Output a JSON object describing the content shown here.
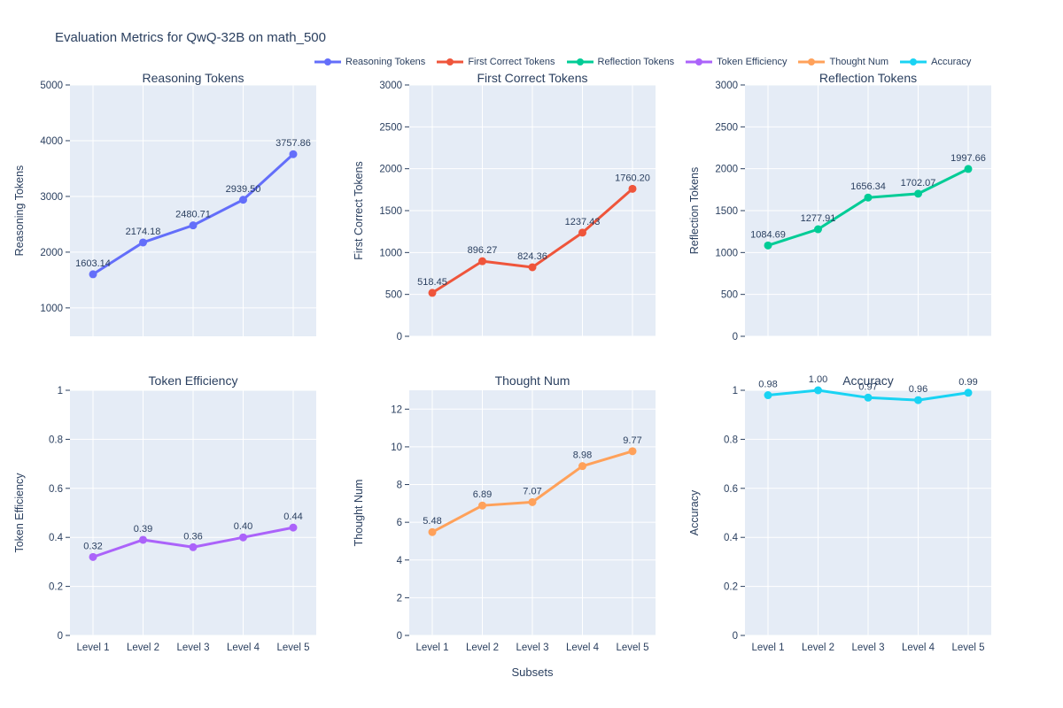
{
  "title": "Evaluation Metrics for QwQ-32B on math_500",
  "xaxis_title": "Subsets",
  "categories": [
    "Level 1",
    "Level 2",
    "Level 3",
    "Level 4",
    "Level 5"
  ],
  "colors": {
    "plot_background": "#e5ecf6",
    "grid": "#ffffff",
    "text": "#2a3f5f"
  },
  "legend": {
    "orientation": "horizontal",
    "items": [
      {
        "label": "Reasoning Tokens",
        "color": "#636efa"
      },
      {
        "label": "First Correct Tokens",
        "color": "#ef553b"
      },
      {
        "label": "Reflection Tokens",
        "color": "#00cc96"
      },
      {
        "label": "Token Efficiency",
        "color": "#ab63fa"
      },
      {
        "label": "Thought Num",
        "color": "#ffa15a"
      },
      {
        "label": "Accuracy",
        "color": "#19d3f3"
      }
    ]
  },
  "chart_data": [
    {
      "type": "line",
      "name": "Reasoning Tokens",
      "title": "Reasoning Tokens",
      "ylabel": "Reasoning Tokens",
      "color": "#636efa",
      "x": [
        "Level 1",
        "Level 2",
        "Level 3",
        "Level 4",
        "Level 5"
      ],
      "y": [
        1603.14,
        2174.18,
        2480.71,
        2939.5,
        3757.86
      ],
      "labels": [
        "1603.14",
        "2174.18",
        "2480.71",
        "2939.50",
        "3757.86"
      ],
      "yticks": [
        1000,
        2000,
        3000,
        4000,
        5000
      ],
      "ytick_labels": [
        "1000",
        "2000",
        "3000",
        "4000",
        "5000"
      ],
      "ylim": [
        490,
        5000
      ],
      "grid": true
    },
    {
      "type": "line",
      "name": "First Correct Tokens",
      "title": "First Correct Tokens",
      "ylabel": "First Correct Tokens",
      "color": "#ef553b",
      "x": [
        "Level 1",
        "Level 2",
        "Level 3",
        "Level 4",
        "Level 5"
      ],
      "y": [
        518.45,
        896.27,
        824.36,
        1237.43,
        1760.2
      ],
      "labels": [
        "518.45",
        "896.27",
        "824.36",
        "1237.43",
        "1760.20"
      ],
      "yticks": [
        0,
        500,
        1000,
        1500,
        2000,
        2500,
        3000
      ],
      "ytick_labels": [
        "0",
        "500",
        "1000",
        "1500",
        "2000",
        "2500",
        "3000"
      ],
      "ylim": [
        0,
        3000
      ],
      "grid": true
    },
    {
      "type": "line",
      "name": "Reflection Tokens",
      "title": "Reflection Tokens",
      "ylabel": "Reflection Tokens",
      "color": "#00cc96",
      "x": [
        "Level 1",
        "Level 2",
        "Level 3",
        "Level 4",
        "Level 5"
      ],
      "y": [
        1084.69,
        1277.91,
        1656.34,
        1702.07,
        1997.66
      ],
      "labels": [
        "1084.69",
        "1277.91",
        "1656.34",
        "1702.07",
        "1997.66"
      ],
      "yticks": [
        0,
        500,
        1000,
        1500,
        2000,
        2500,
        3000
      ],
      "ytick_labels": [
        "0",
        "500",
        "1000",
        "1500",
        "2000",
        "2500",
        "3000"
      ],
      "ylim": [
        0,
        3000
      ],
      "grid": true
    },
    {
      "type": "line",
      "name": "Token Efficiency",
      "title": "Token Efficiency",
      "ylabel": "Token Efficiency",
      "color": "#ab63fa",
      "x": [
        "Level 1",
        "Level 2",
        "Level 3",
        "Level 4",
        "Level 5"
      ],
      "y": [
        0.32,
        0.39,
        0.36,
        0.4,
        0.44
      ],
      "labels": [
        "0.32",
        "0.39",
        "0.36",
        "0.40",
        "0.44"
      ],
      "yticks": [
        0,
        0.2,
        0.4,
        0.6,
        0.8,
        1
      ],
      "ytick_labels": [
        "0",
        "0.2",
        "0.4",
        "0.6",
        "0.8",
        "1"
      ],
      "ylim": [
        0,
        1
      ],
      "grid": true
    },
    {
      "type": "line",
      "name": "Thought Num",
      "title": "Thought Num",
      "ylabel": "Thought Num",
      "color": "#ffa15a",
      "x": [
        "Level 1",
        "Level 2",
        "Level 3",
        "Level 4",
        "Level 5"
      ],
      "y": [
        5.48,
        6.89,
        7.07,
        8.98,
        9.77
      ],
      "labels": [
        "5.48",
        "6.89",
        "7.07",
        "8.98",
        "9.77"
      ],
      "yticks": [
        0,
        2,
        4,
        6,
        8,
        10,
        12
      ],
      "ytick_labels": [
        "0",
        "2",
        "4",
        "6",
        "8",
        "10",
        "12"
      ],
      "ylim": [
        0,
        13
      ],
      "grid": true
    },
    {
      "type": "line",
      "name": "Accuracy",
      "title": "Accuracy",
      "ylabel": "Accuracy",
      "color": "#19d3f3",
      "x": [
        "Level 1",
        "Level 2",
        "Level 3",
        "Level 4",
        "Level 5"
      ],
      "y": [
        0.98,
        1.0,
        0.97,
        0.96,
        0.99
      ],
      "labels": [
        "0.98",
        "1.00",
        "0.97",
        "0.96",
        "0.99"
      ],
      "yticks": [
        0,
        0.2,
        0.4,
        0.6,
        0.8,
        1
      ],
      "ytick_labels": [
        "0",
        "0.2",
        "0.4",
        "0.6",
        "0.8",
        "1"
      ],
      "ylim": [
        0,
        1
      ],
      "grid": true
    }
  ]
}
